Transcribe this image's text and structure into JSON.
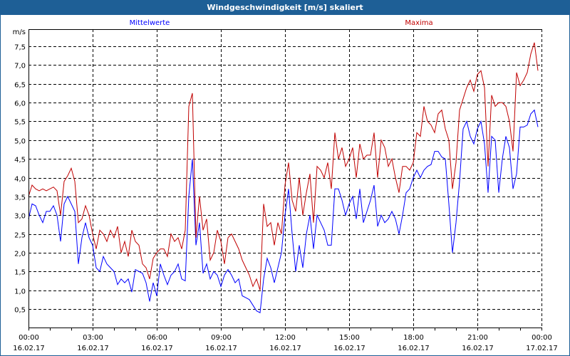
{
  "window": {
    "title": "Windgeschwindigkeit [m/s] skaliert"
  },
  "chart_data": {
    "type": "line",
    "title": "Windgeschwindigkeit [m/s] skaliert",
    "ylabel": "m/s",
    "xlabel": "",
    "ylim": [
      0,
      8
    ],
    "xlim_hours": [
      0,
      24
    ],
    "grid": true,
    "y_ticks": [
      {
        "v": 0.5,
        "label": "0,5"
      },
      {
        "v": 1.0,
        "label": "1,0"
      },
      {
        "v": 1.5,
        "label": "1,5"
      },
      {
        "v": 2.0,
        "label": "2,0"
      },
      {
        "v": 2.5,
        "label": "2,5"
      },
      {
        "v": 3.0,
        "label": "3,0"
      },
      {
        "v": 3.5,
        "label": "3,5"
      },
      {
        "v": 4.0,
        "label": "4,0"
      },
      {
        "v": 4.5,
        "label": "4,5"
      },
      {
        "v": 5.0,
        "label": "5,0"
      },
      {
        "v": 5.5,
        "label": "5,5"
      },
      {
        "v": 6.0,
        "label": "6,0"
      },
      {
        "v": 6.5,
        "label": "6,5"
      },
      {
        "v": 7.0,
        "label": "7,0"
      },
      {
        "v": 7.5,
        "label": "7,5"
      }
    ],
    "x_ticks": [
      {
        "h": 0,
        "time": "00:00",
        "date": "16.02.17"
      },
      {
        "h": 3,
        "time": "03:00",
        "date": "16.02.17"
      },
      {
        "h": 6,
        "time": "06:00",
        "date": "16.02.17"
      },
      {
        "h": 9,
        "time": "09:00",
        "date": "16.02.17"
      },
      {
        "h": 12,
        "time": "12:00",
        "date": "16.02.17"
      },
      {
        "h": 15,
        "time": "15:00",
        "date": "16.02.17"
      },
      {
        "h": 18,
        "time": "18:00",
        "date": "16.02.17"
      },
      {
        "h": 21,
        "time": "21:00",
        "date": "16.02.17"
      },
      {
        "h": 24,
        "time": "00:00",
        "date": "17.02.17"
      }
    ],
    "x_interval_minutes": 10,
    "series": [
      {
        "name": "Mittelwerte",
        "color": "#0000ff",
        "legend": "top-left",
        "values": [
          2.9,
          3.3,
          3.25,
          3.0,
          2.8,
          3.1,
          3.1,
          3.25,
          3.0,
          2.3,
          3.3,
          3.5,
          3.3,
          3.1,
          1.7,
          2.4,
          2.8,
          2.4,
          2.2,
          1.6,
          1.5,
          1.9,
          1.7,
          1.6,
          1.5,
          1.15,
          1.3,
          1.2,
          1.3,
          0.95,
          1.55,
          1.5,
          1.45,
          1.2,
          0.7,
          1.2,
          0.85,
          1.7,
          1.4,
          1.15,
          1.4,
          1.5,
          1.7,
          1.3,
          1.25,
          3.5,
          4.5,
          2.2,
          2.8,
          1.45,
          1.7,
          1.3,
          1.5,
          1.4,
          1.1,
          1.4,
          1.55,
          1.4,
          1.2,
          1.3,
          0.85,
          0.8,
          0.75,
          0.6,
          0.45,
          0.4,
          1.3,
          1.85,
          1.6,
          1.2,
          1.6,
          2.0,
          3.0,
          3.7,
          2.5,
          1.5,
          2.2,
          1.6,
          2.5,
          3.0,
          2.1,
          3.0,
          2.8,
          2.6,
          2.2,
          2.2,
          3.7,
          3.7,
          3.4,
          3.0,
          3.3,
          3.5,
          2.9,
          3.7,
          2.8,
          3.1,
          3.4,
          3.8,
          2.7,
          3.0,
          2.8,
          2.9,
          3.1,
          2.9,
          2.5,
          3.0,
          3.6,
          3.7,
          4.0,
          4.2,
          4.0,
          4.2,
          4.3,
          4.35,
          4.7,
          4.7,
          4.55,
          4.5,
          3.3,
          2.0,
          2.8,
          3.9,
          5.3,
          5.5,
          5.1,
          4.9,
          5.3,
          5.5,
          4.9,
          3.6,
          5.1,
          5.0,
          3.6,
          4.5,
          5.1,
          4.8,
          3.7,
          4.1,
          5.35,
          5.35,
          5.4,
          5.7,
          5.8,
          5.35
        ]
      },
      {
        "name": "Maxima",
        "color": "#c00000",
        "legend": "top-right",
        "values": [
          3.5,
          3.8,
          3.7,
          3.65,
          3.7,
          3.65,
          3.7,
          3.75,
          3.65,
          3.0,
          3.9,
          4.05,
          4.25,
          3.9,
          2.8,
          2.9,
          3.25,
          3.0,
          2.5,
          2.1,
          2.6,
          2.5,
          2.3,
          2.6,
          2.4,
          2.7,
          2.0,
          2.3,
          1.9,
          2.6,
          2.3,
          2.2,
          1.7,
          1.6,
          1.3,
          1.85,
          2.0,
          2.1,
          2.1,
          1.9,
          2.5,
          2.3,
          2.4,
          2.1,
          2.6,
          5.9,
          6.25,
          2.4,
          3.5,
          2.6,
          2.9,
          1.8,
          2.0,
          2.6,
          2.3,
          1.7,
          2.4,
          2.5,
          2.3,
          2.1,
          1.8,
          1.6,
          1.4,
          1.1,
          1.3,
          1.0,
          3.3,
          2.7,
          2.8,
          2.2,
          2.8,
          2.5,
          3.8,
          4.4,
          3.4,
          3.1,
          4.0,
          3.0,
          3.6,
          4.1,
          2.8,
          4.3,
          4.2,
          4.0,
          4.4,
          3.7,
          5.2,
          4.5,
          4.8,
          4.3,
          4.5,
          4.8,
          4.0,
          4.9,
          4.5,
          4.6,
          4.6,
          5.2,
          4.0,
          5.0,
          4.8,
          4.3,
          4.5,
          4.0,
          3.6,
          4.3,
          4.3,
          4.2,
          4.4,
          5.2,
          5.1,
          5.9,
          5.5,
          5.4,
          5.2,
          5.7,
          5.8,
          5.3,
          5.0,
          3.7,
          4.4,
          5.8,
          6.1,
          6.4,
          6.6,
          6.3,
          6.75,
          6.85,
          6.4,
          4.3,
          6.2,
          5.9,
          6.0,
          6.0,
          5.9,
          5.5,
          4.7,
          6.8,
          6.45,
          6.6,
          6.8,
          7.3,
          7.6,
          6.85
        ]
      }
    ]
  }
}
